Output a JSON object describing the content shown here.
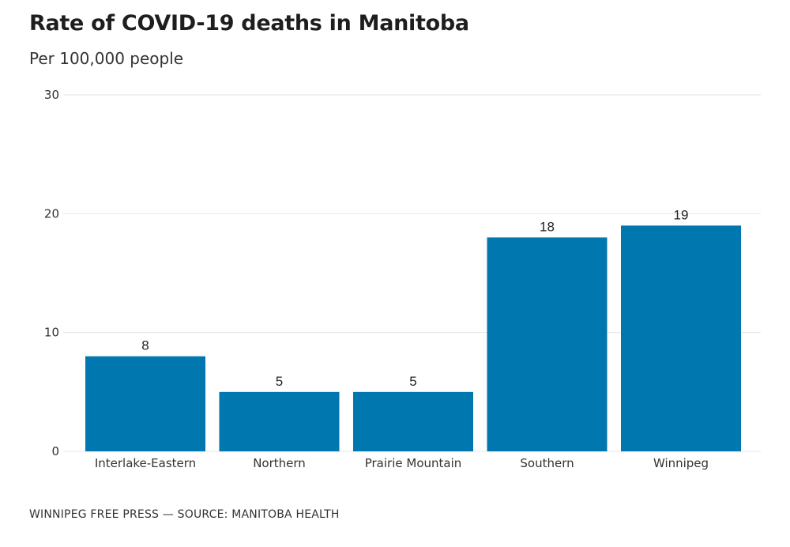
{
  "chart_data": {
    "type": "bar",
    "title": "Rate of COVID-19 deaths in Manitoba",
    "subtitle": "Per 100,000 people",
    "categories": [
      "Interlake-Eastern",
      "Northern",
      "Prairie Mountain",
      "Southern",
      "Winnipeg"
    ],
    "values": [
      8,
      5,
      5,
      18,
      19
    ],
    "data_labels": [
      "8",
      "5",
      "5",
      "18",
      "19"
    ],
    "yticks": [
      0,
      10,
      20,
      30
    ],
    "ytick_labels": [
      "0",
      "10",
      "20",
      "30"
    ],
    "ylim": [
      0,
      30
    ],
    "xlabel": "",
    "ylabel": "",
    "grid": true,
    "legend": "none",
    "bar_color": "#0077ae",
    "grid_color": "#e6e6e6"
  },
  "footer": {
    "source": "WINNIPEG FREE PRESS — SOURCE: MANITOBA HEALTH"
  }
}
